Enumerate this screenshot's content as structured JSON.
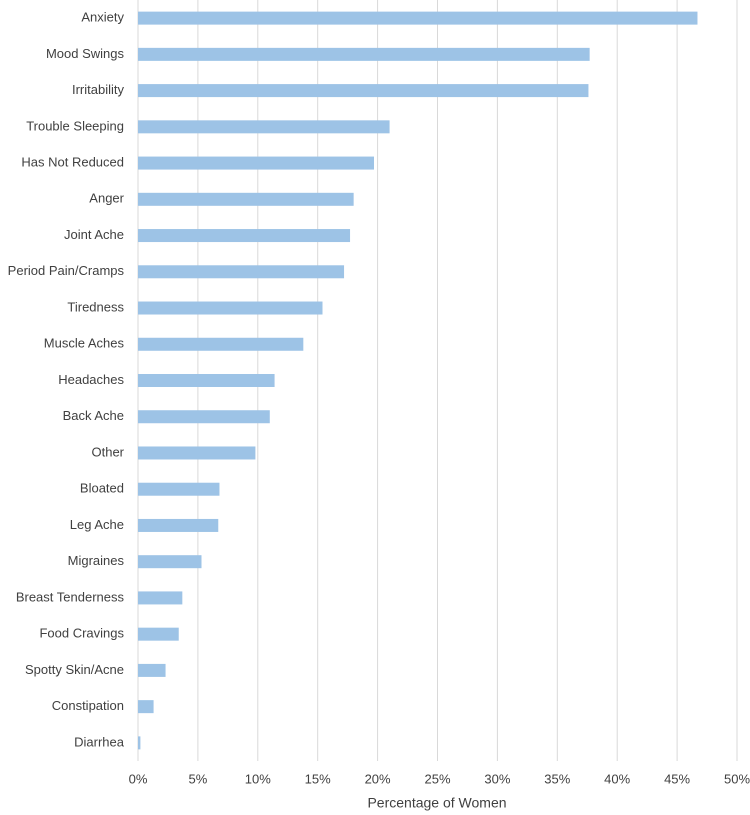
{
  "chart_data": {
    "type": "bar",
    "orientation": "horizontal",
    "x_label": "Percentage of Women",
    "categories": [
      "Anxiety",
      "Mood Swings",
      "Irritability",
      "Trouble Sleeping",
      "Has Not Reduced",
      "Anger",
      "Joint Ache",
      "Period Pain/Cramps",
      "Tiredness",
      "Muscle Aches",
      "Headaches",
      "Back Ache",
      "Other",
      "Bloated",
      "Leg Ache",
      "Migraines",
      "Breast Tenderness",
      "Food Cravings",
      "Spotty Skin/Acne",
      "Constipation",
      "Diarrhea"
    ],
    "values": [
      46.7,
      37.7,
      37.6,
      21.0,
      19.7,
      18.0,
      17.7,
      17.2,
      15.4,
      13.8,
      11.4,
      11.0,
      9.8,
      6.8,
      6.7,
      5.3,
      3.7,
      3.4,
      2.3,
      1.3,
      0.2
    ],
    "color": "#9dc3e6",
    "xlim": [
      0,
      50
    ],
    "xticks": [
      {
        "value": 0,
        "label": "0%"
      },
      {
        "value": 5,
        "label": "5%"
      },
      {
        "value": 10,
        "label": "10%"
      },
      {
        "value": 15,
        "label": "15%"
      },
      {
        "value": 20,
        "label": "20%"
      },
      {
        "value": 25,
        "label": "25%"
      },
      {
        "value": 30,
        "label": "30%"
      },
      {
        "value": 35,
        "label": "35%"
      },
      {
        "value": 40,
        "label": "40%"
      },
      {
        "value": 45,
        "label": "45%"
      },
      {
        "value": 50,
        "label": "50%"
      }
    ],
    "grid": true
  }
}
